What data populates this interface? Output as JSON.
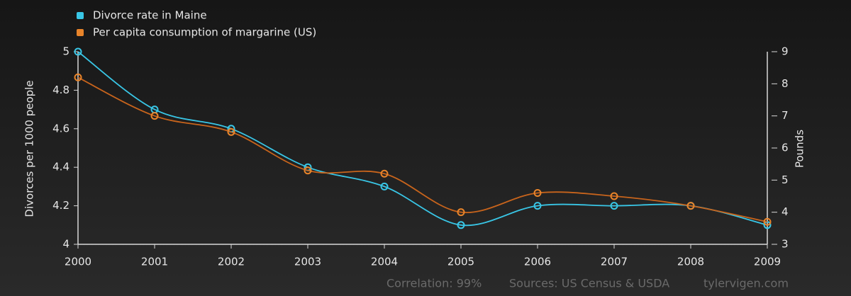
{
  "chart_data": {
    "type": "line",
    "x": [
      2000,
      2001,
      2002,
      2003,
      2004,
      2005,
      2006,
      2007,
      2008,
      2009
    ],
    "series": [
      {
        "name": "Divorce rate in Maine",
        "color": "#39c6e6",
        "values": [
          5.0,
          4.7,
          4.6,
          4.4,
          4.3,
          4.1,
          4.2,
          4.2,
          4.2,
          4.1
        ]
      },
      {
        "name": "Per capita consumption of margarine (US)",
        "color": "#e8842a",
        "axis": "y2",
        "values": [
          8.2,
          7.0,
          6.5,
          5.3,
          5.2,
          4.0,
          4.6,
          4.5,
          4.2,
          3.7
        ]
      }
    ],
    "xlim": [
      2000,
      2009
    ],
    "xticks": [
      2000,
      2001,
      2002,
      2003,
      2004,
      2005,
      2006,
      2007,
      2008,
      2009
    ],
    "ylim": [
      4,
      5
    ],
    "yticks": [
      4,
      4.2,
      4.4,
      4.6,
      4.8,
      5
    ],
    "y2lim": [
      3,
      9
    ],
    "y2ticks": [
      3,
      4,
      5,
      6,
      7,
      8,
      9
    ],
    "ylabel": "Divorces per 1000 people",
    "y2label": "Pounds",
    "footer": [
      "Correlation: 99%",
      "Sources: US Census & USDA",
      "tylervigen.com"
    ]
  }
}
